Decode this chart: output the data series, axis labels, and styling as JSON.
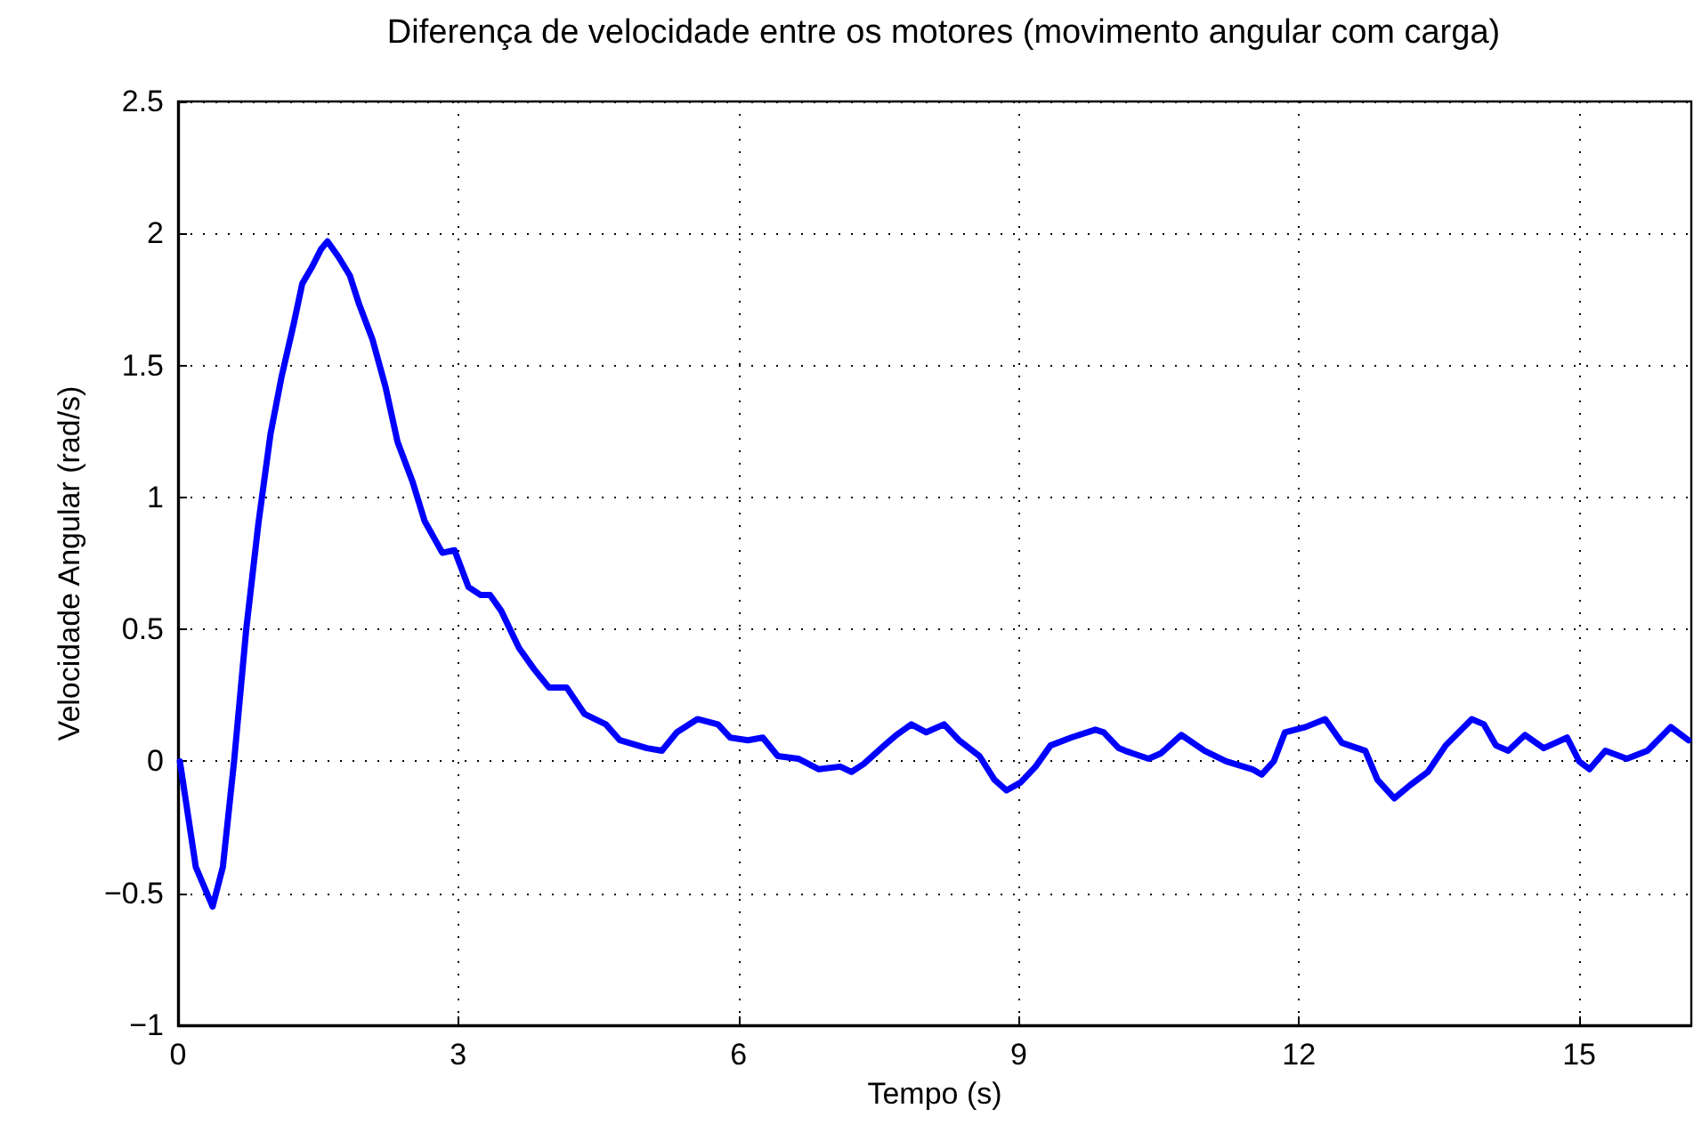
{
  "chart_data": {
    "type": "line",
    "title": "Diferença de velocidade entre os motores (movimento angular com carga)",
    "xlabel": "Tempo (s)",
    "ylabel": "Velocidade Angular (rad/s)",
    "xlim": [
      0,
      16.2
    ],
    "xticks": [
      0,
      3,
      6,
      9,
      12,
      15
    ],
    "ylim": [
      -1,
      2.5
    ],
    "yticks": [
      -1,
      -0.5,
      0,
      0.5,
      1,
      1.5,
      2,
      2.5
    ],
    "grid": true,
    "line_style": "solid",
    "marker": "none",
    "series": [
      {
        "color": "#0000ff",
        "x": [
          0.02,
          0.19,
          0.37,
          0.48,
          0.6,
          0.73,
          0.86,
          0.99,
          1.11,
          1.24,
          1.33,
          1.43,
          1.53,
          1.6,
          1.72,
          1.84,
          1.94,
          2.08,
          2.22,
          2.35,
          2.51,
          2.64,
          2.83,
          2.96,
          3.11,
          3.24,
          3.34,
          3.46,
          3.65,
          3.81,
          3.97,
          4.16,
          4.35,
          4.58,
          4.73,
          5.02,
          5.18,
          5.34,
          5.56,
          5.78,
          5.91,
          6.1,
          6.26,
          6.42,
          6.64,
          6.86,
          7.09,
          7.21,
          7.34,
          7.56,
          7.69,
          7.85,
          8.01,
          8.2,
          8.36,
          8.58,
          8.74,
          8.87,
          9.02,
          9.18,
          9.34,
          9.56,
          9.82,
          9.91,
          10.07,
          10.14,
          10.39,
          10.52,
          10.74,
          10.99,
          11.22,
          11.5,
          11.6,
          11.73,
          11.85,
          12.07,
          12.28,
          12.46,
          12.71,
          12.84,
          13.02,
          13.19,
          13.38,
          13.57,
          13.85,
          13.98,
          14.11,
          14.24,
          14.42,
          14.62,
          14.87,
          15.0,
          15.11,
          15.28,
          15.51,
          15.73,
          15.98,
          16.17
        ],
        "values": [
          0,
          -0.4,
          -0.55,
          -0.4,
          0,
          0.5,
          0.9,
          1.24,
          1.46,
          1.66,
          1.81,
          1.87,
          1.94,
          1.97,
          1.91,
          1.84,
          1.73,
          1.6,
          1.42,
          1.21,
          1.06,
          0.91,
          0.79,
          0.8,
          0.66,
          0.63,
          0.63,
          0.57,
          0.43,
          0.35,
          0.28,
          0.28,
          0.18,
          0.14,
          0.08,
          0.05,
          0.04,
          0.11,
          0.16,
          0.14,
          0.09,
          0.08,
          0.09,
          0.02,
          0.01,
          -0.03,
          -0.02,
          -0.04,
          -0.01,
          0.06,
          0.1,
          0.14,
          0.11,
          0.14,
          0.08,
          0.02,
          -0.07,
          -0.11,
          -0.08,
          -0.02,
          0.06,
          0.09,
          0.12,
          0.11,
          0.05,
          0.04,
          0.01,
          0.03,
          0.1,
          0.04,
          0,
          -0.03,
          -0.05,
          0,
          0.11,
          0.13,
          0.16,
          0.07,
          0.04,
          -0.07,
          -0.14,
          -0.09,
          -0.04,
          0.06,
          0.16,
          0.14,
          0.06,
          0.04,
          0.1,
          0.05,
          0.09,
          0,
          -0.03,
          0.04,
          0.01,
          0.04,
          0.13,
          0.08
        ]
      }
    ]
  }
}
